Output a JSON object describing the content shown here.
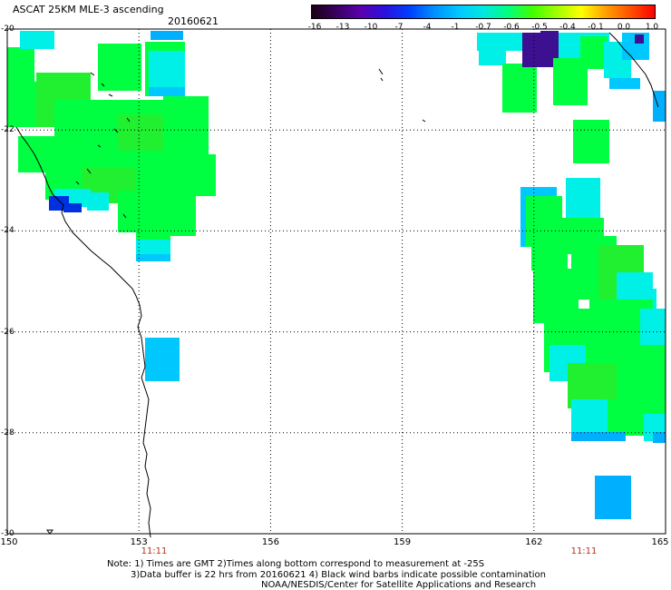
{
  "header": {
    "title": "ASCAT 25KM MLE-3 ascending",
    "date": "20160621"
  },
  "colorbar": {
    "labels": [
      "-16",
      "-13",
      "-10",
      "-7",
      "-4",
      "-1",
      "-0.7",
      "-0.6",
      "-0.5",
      "-0.4",
      "-0.1",
      "0.0",
      "1.0"
    ],
    "colors": [
      "#1a0014",
      "#3a0060",
      "#5a00b0",
      "#2a10e0",
      "#0040ff",
      "#0090ff",
      "#00c8ff",
      "#00e8e0",
      "#00ff80",
      "#40ff00",
      "#a0ff00",
      "#ffff00",
      "#ffa000",
      "#ff5000",
      "#ff0000"
    ]
  },
  "axes": {
    "lat_labels": [
      "-20",
      "-22",
      "-24",
      "-26",
      "-28",
      "-30"
    ],
    "lon_labels": [
      "150",
      "153",
      "156",
      "159",
      "162",
      "165"
    ],
    "time_labels": [
      "11:11",
      "11:11"
    ]
  },
  "notes": {
    "line1": "Note: 1) Times are GMT 2)Times along bottom correspond to measurement at -25S",
    "line2": "3)Data buffer is 22 hrs from 20160621 4) Black wind barbs indicate possible contamination",
    "line3": "NOAA/NESDIS/Center for Satellite Applications and Research"
  },
  "colors": {
    "green": "#00ff40",
    "green2": "#20f030",
    "cyan": "#00f0e8",
    "lightblue": "#00c8ff",
    "skyblue": "#00b0ff",
    "blue": "#0030e0",
    "purple": "#3c1090",
    "grid": "#000000"
  }
}
